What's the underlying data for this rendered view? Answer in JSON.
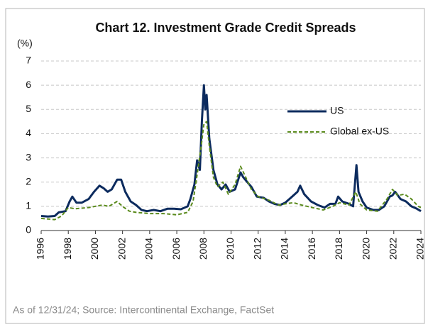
{
  "chart_data": {
    "type": "line",
    "title": "Chart 12. Investment Grade Credit Spreads",
    "y_label": "(%)",
    "note": "As of 12/31/24; Source: Intercontinental Exchange, FactSet",
    "xlim": [
      1996,
      2024
    ],
    "xticks": [
      1996,
      1998,
      2000,
      2002,
      2004,
      2006,
      2008,
      2010,
      2012,
      2014,
      2016,
      2018,
      2020,
      2022,
      2024
    ],
    "ylim": [
      0,
      7
    ],
    "yticks": [
      0,
      1,
      2,
      3,
      4,
      5,
      6,
      7
    ],
    "grid": true,
    "legend": "upper right",
    "series": [
      {
        "name": "US",
        "color": "#0c2b5e",
        "style": "solid",
        "x": [
          1996,
          1996.5,
          1997,
          1997.3,
          1997.8,
          1998.1,
          1998.3,
          1998.6,
          1999.0,
          1999.5,
          1999.9,
          2000.3,
          2000.6,
          2000.9,
          2001.2,
          2001.6,
          2001.9,
          2002.2,
          2002.6,
          2003.0,
          2003.4,
          2003.8,
          2004.3,
          2004.8,
          2005.3,
          2005.8,
          2006.3,
          2006.8,
          2007.0,
          2007.3,
          2007.5,
          2007.7,
          2007.85,
          2008.0,
          2008.1,
          2008.2,
          2008.4,
          2008.7,
          2009.0,
          2009.3,
          2009.6,
          2009.9,
          2010.3,
          2010.7,
          2010.9,
          2011.2,
          2011.5,
          2011.9,
          2012.4,
          2012.8,
          2013.2,
          2013.6,
          2014.0,
          2014.5,
          2014.9,
          2015.1,
          2015.4,
          2015.9,
          2016.4,
          2016.9,
          2017.3,
          2017.7,
          2017.9,
          2018.2,
          2018.7,
          2019.0,
          2019.25,
          2019.4,
          2019.7,
          2020.0,
          2020.5,
          2020.9,
          2021.3,
          2021.7,
          2021.9,
          2022.1,
          2022.5,
          2022.9,
          2023.3,
          2023.7,
          2024.0
        ],
        "values": [
          0.6,
          0.58,
          0.6,
          0.75,
          0.8,
          1.2,
          1.4,
          1.15,
          1.15,
          1.3,
          1.6,
          1.85,
          1.75,
          1.6,
          1.7,
          2.1,
          2.1,
          1.6,
          1.2,
          1.05,
          0.85,
          0.8,
          0.85,
          0.8,
          0.9,
          0.9,
          0.88,
          1.0,
          1.3,
          1.9,
          2.9,
          2.5,
          4.5,
          6.0,
          5.0,
          5.6,
          3.8,
          2.5,
          1.9,
          1.7,
          1.9,
          1.6,
          1.7,
          2.4,
          2.2,
          2.0,
          1.8,
          1.4,
          1.35,
          1.2,
          1.1,
          1.05,
          1.15,
          1.4,
          1.6,
          1.85,
          1.5,
          1.2,
          1.05,
          0.95,
          1.1,
          1.1,
          1.4,
          1.2,
          1.1,
          1.0,
          2.7,
          1.6,
          1.2,
          0.95,
          0.85,
          0.85,
          1.0,
          1.4,
          1.45,
          1.6,
          1.3,
          1.2,
          1.0,
          0.9,
          0.8
        ]
      },
      {
        "name": "Global ex-US",
        "color": "#5a8a1c",
        "style": "dashed",
        "x": [
          1996,
          1997,
          1997.5,
          1998,
          1998.5,
          1999.5,
          2000.5,
          2001,
          2001.6,
          2002,
          2002.5,
          2003,
          2004,
          2005,
          2006,
          2006.8,
          2007.2,
          2007.5,
          2007.8,
          2008.0,
          2008.2,
          2008.4,
          2008.7,
          2009.0,
          2009.4,
          2009.8,
          2010.3,
          2010.7,
          2011.0,
          2011.5,
          2012,
          2012.8,
          2013.5,
          2014,
          2014.6,
          2015.2,
          2016,
          2016.8,
          2017.5,
          2018,
          2018.7,
          2019.2,
          2019.5,
          2020,
          2020.8,
          2021.5,
          2021.9,
          2022.3,
          2022.8,
          2023.3,
          2023.8,
          2024
        ],
        "values": [
          0.5,
          0.45,
          0.6,
          0.95,
          0.9,
          0.95,
          1.05,
          1.0,
          1.2,
          1.0,
          0.8,
          0.75,
          0.7,
          0.7,
          0.65,
          0.75,
          1.2,
          2.3,
          3.5,
          4.4,
          4.5,
          3.5,
          2.2,
          1.8,
          2.0,
          1.5,
          1.9,
          2.65,
          2.3,
          1.7,
          1.4,
          1.25,
          1.05,
          1.1,
          1.15,
          1.05,
          0.95,
          0.85,
          1.0,
          1.15,
          1.05,
          1.6,
          1.1,
          0.85,
          0.8,
          1.3,
          1.7,
          1.45,
          1.5,
          1.3,
          1.0,
          0.95
        ]
      }
    ]
  }
}
